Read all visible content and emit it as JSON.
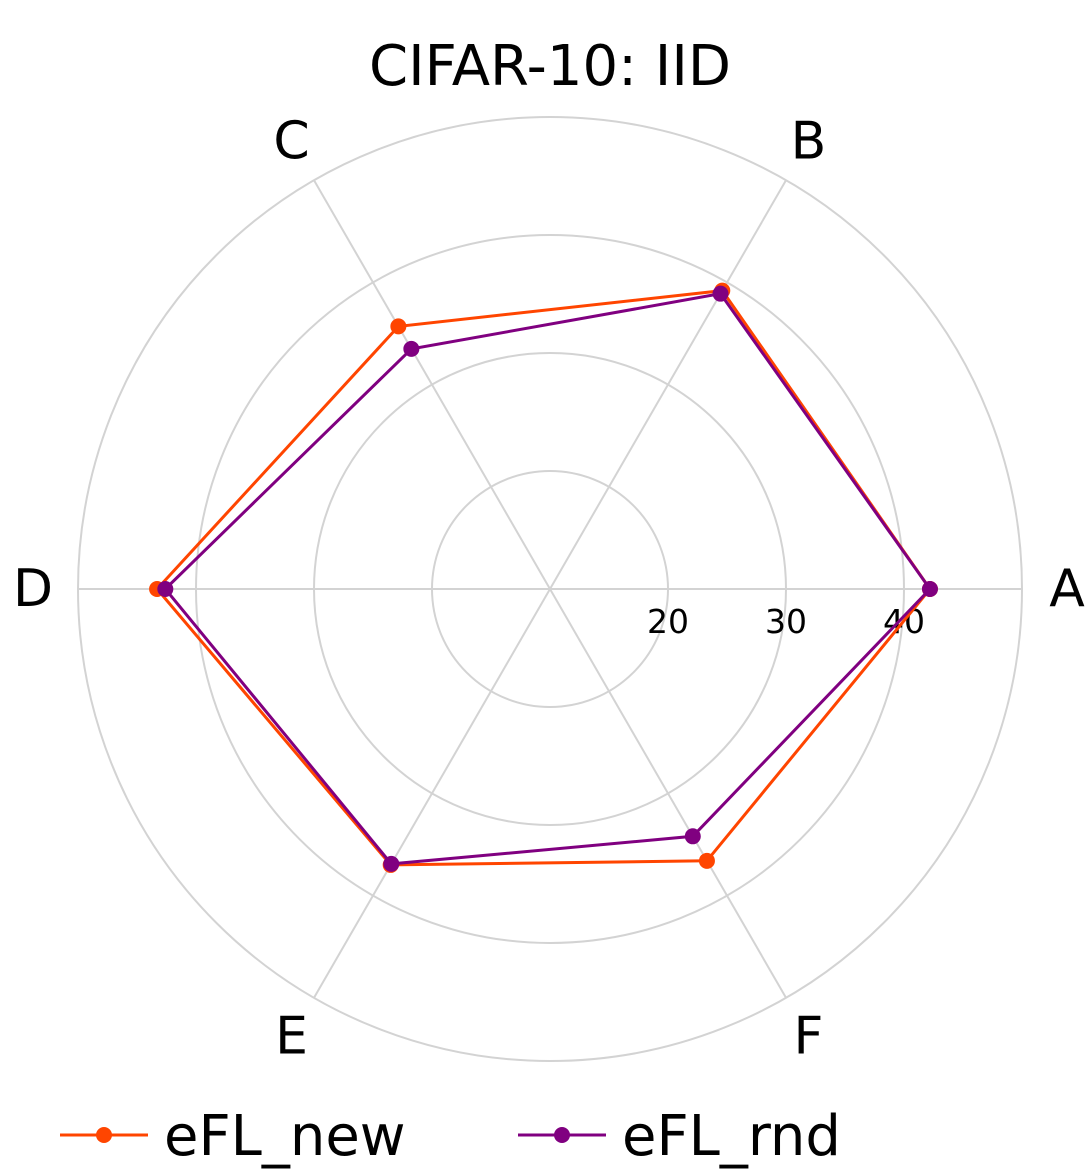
{
  "chart_data": {
    "type": "radar",
    "title": "CIFAR-10: IID",
    "categories": [
      "A",
      "B",
      "C",
      "D",
      "E",
      "F"
    ],
    "radial_ticks": [
      20,
      30,
      40
    ],
    "rlim": [
      10,
      50
    ],
    "grid": true,
    "legend_position": "bottom",
    "series": [
      {
        "name": "eFL_new",
        "color": "#ff4500",
        "values": [
          42.2,
          39.2,
          35.7,
          43.3,
          37.0,
          36.6
        ]
      },
      {
        "name": "eFL_rnd",
        "color": "#800080",
        "values": [
          42.2,
          38.9,
          33.5,
          42.6,
          36.9,
          34.2
        ]
      }
    ]
  }
}
